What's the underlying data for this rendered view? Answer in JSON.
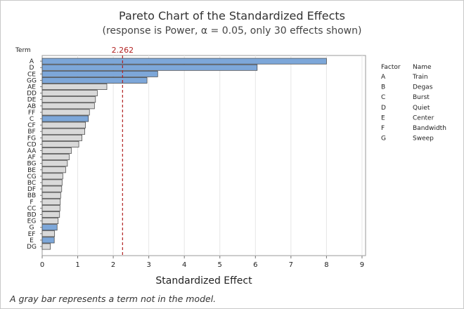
{
  "chart_data": {
    "type": "bar",
    "orientation": "horizontal",
    "title": "Pareto Chart of the Standardized Effects",
    "subtitle": "(response is Power, α = 0.05, only 30 effects shown)",
    "xlabel": "Standardized Effect",
    "ylabel": "Term",
    "xlim": [
      0,
      9.1
    ],
    "xticks": [
      0,
      1,
      2,
      3,
      4,
      5,
      6,
      7,
      8,
      9
    ],
    "grid": true,
    "reference_line": {
      "value": 2.262,
      "label": "2.262"
    },
    "categories": [
      "A",
      "D",
      "CE",
      "GG",
      "AE",
      "DD",
      "DE",
      "AB",
      "FF",
      "C",
      "CF",
      "BF",
      "FG",
      "CD",
      "AA",
      "AF",
      "BG",
      "BE",
      "CG",
      "BC",
      "DF",
      "BB",
      "F",
      "CC",
      "BD",
      "EG",
      "G",
      "EF",
      "E",
      "DG"
    ],
    "values": [
      8.0,
      6.05,
      3.25,
      2.95,
      1.82,
      1.55,
      1.5,
      1.47,
      1.33,
      1.3,
      1.22,
      1.2,
      1.12,
      1.03,
      0.82,
      0.76,
      0.71,
      0.66,
      0.58,
      0.56,
      0.55,
      0.52,
      0.51,
      0.5,
      0.49,
      0.45,
      0.42,
      0.35,
      0.34,
      0.23
    ],
    "in_model": [
      true,
      true,
      true,
      true,
      false,
      false,
      false,
      false,
      false,
      true,
      false,
      false,
      false,
      false,
      false,
      false,
      false,
      false,
      false,
      false,
      false,
      false,
      false,
      false,
      false,
      false,
      true,
      false,
      true,
      false
    ],
    "colors": {
      "in_model": "#7da7d9",
      "not_in_model": "#d9d9d9",
      "reference": "#b22222"
    }
  },
  "factor_table": {
    "header_factor": "Factor",
    "header_name": "Name",
    "rows": [
      {
        "factor": "A",
        "name": "Train"
      },
      {
        "factor": "B",
        "name": "Degas"
      },
      {
        "factor": "C",
        "name": "Burst"
      },
      {
        "factor": "D",
        "name": "Quiet"
      },
      {
        "factor": "E",
        "name": "Center"
      },
      {
        "factor": "F",
        "name": "Bandwidth"
      },
      {
        "factor": "G",
        "name": "Sweep"
      }
    ]
  },
  "footnote": "A gray bar represents a term not in the model."
}
